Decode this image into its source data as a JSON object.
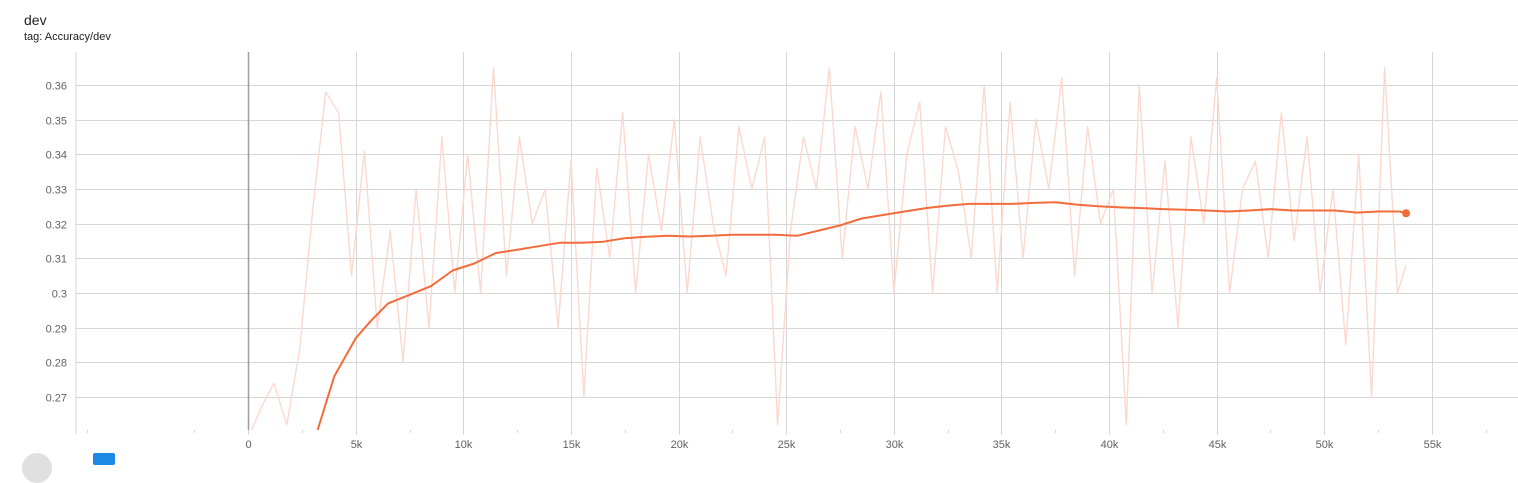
{
  "card": {
    "title": "dev",
    "tag": "tag: Accuracy/dev"
  },
  "colors": {
    "smoothed": "#f36b3b",
    "raw": "#fbd9ce",
    "grid": "#d6d6d6",
    "axis_line": "#9e9e9e",
    "tick_text": "#616161"
  },
  "chart_data": {
    "type": "line",
    "title": "dev",
    "subtitle": "tag: Accuracy/dev",
    "xlabel": "",
    "ylabel": "",
    "xlim": [
      -8000,
      59000
    ],
    "ylim": [
      0.2605,
      0.3695
    ],
    "x_ticks": [
      0,
      5000,
      10000,
      15000,
      20000,
      25000,
      30000,
      35000,
      40000,
      45000,
      50000,
      55000
    ],
    "x_tick_labels": [
      "0",
      "5k",
      "10k",
      "15k",
      "20k",
      "25k",
      "30k",
      "35k",
      "40k",
      "45k",
      "50k",
      "55k"
    ],
    "y_ticks": [
      0.27,
      0.28,
      0.29,
      0.3,
      0.31,
      0.32,
      0.33,
      0.34,
      0.35,
      0.36
    ],
    "y_tick_labels": [
      "0.27",
      "0.28",
      "0.29",
      "0.3",
      "0.31",
      "0.32",
      "0.33",
      "0.34",
      "0.35",
      "0.36"
    ],
    "grid": true,
    "series": [
      {
        "name": "Accuracy/dev (smoothed)",
        "x": [
          3200,
          4000,
          5000,
          5700,
          6500,
          7500,
          8500,
          9500,
          10500,
          11500,
          12500,
          13500,
          14500,
          15500,
          16500,
          17500,
          18500,
          19500,
          20500,
          21500,
          22500,
          23500,
          24500,
          25500,
          26500,
          27500,
          28500,
          29500,
          30500,
          31500,
          32500,
          33500,
          34500,
          35500,
          36500,
          37500,
          38500,
          39500,
          40500,
          41500,
          42500,
          43500,
          44500,
          45500,
          46500,
          47500,
          48500,
          49500,
          50500,
          51500,
          52500,
          53500,
          53800
        ],
        "values": [
          0.26,
          0.276,
          0.287,
          0.292,
          0.297,
          0.2995,
          0.302,
          0.3065,
          0.3085,
          0.3115,
          0.3125,
          0.3135,
          0.3145,
          0.3145,
          0.3148,
          0.3158,
          0.3162,
          0.3165,
          0.3163,
          0.3165,
          0.3168,
          0.3168,
          0.3168,
          0.3165,
          0.318,
          0.3195,
          0.3215,
          0.3225,
          0.3235,
          0.3245,
          0.3252,
          0.3257,
          0.3257,
          0.3257,
          0.326,
          0.3262,
          0.3255,
          0.325,
          0.3247,
          0.3245,
          0.3242,
          0.324,
          0.3238,
          0.3235,
          0.3238,
          0.3242,
          0.3238,
          0.3238,
          0.3238,
          0.3232,
          0.3235,
          0.3235,
          0.323
        ]
      },
      {
        "name": "Accuracy/dev (raw)",
        "x": [
          0,
          600,
          1200,
          1800,
          2400,
          3000,
          3600,
          4200,
          4800,
          5400,
          6000,
          6600,
          7200,
          7800,
          8400,
          9000,
          9600,
          10200,
          10800,
          11400,
          12000,
          12600,
          13200,
          13800,
          14400,
          15000,
          15600,
          16200,
          16800,
          17400,
          18000,
          18600,
          19200,
          19800,
          20400,
          21000,
          21600,
          22200,
          22800,
          23400,
          24000,
          24600,
          25200,
          25800,
          26400,
          27000,
          27600,
          28200,
          28800,
          29400,
          30000,
          30600,
          31200,
          31800,
          32400,
          33000,
          33600,
          34200,
          34800,
          35400,
          36000,
          36600,
          37200,
          37800,
          38400,
          39000,
          39600,
          40200,
          40800,
          41400,
          42000,
          42600,
          43200,
          43800,
          44400,
          45000,
          45600,
          46200,
          46800,
          47400,
          48000,
          48600,
          49200,
          49800,
          50400,
          51000,
          51600,
          52200,
          52800,
          53400,
          53800
        ],
        "values": [
          0.258,
          0.267,
          0.274,
          0.262,
          0.284,
          0.324,
          0.358,
          0.352,
          0.305,
          0.341,
          0.29,
          0.318,
          0.28,
          0.33,
          0.29,
          0.345,
          0.3,
          0.34,
          0.3,
          0.365,
          0.305,
          0.345,
          0.32,
          0.33,
          0.29,
          0.338,
          0.27,
          0.336,
          0.31,
          0.352,
          0.3,
          0.34,
          0.318,
          0.35,
          0.3,
          0.345,
          0.32,
          0.305,
          0.348,
          0.33,
          0.345,
          0.262,
          0.318,
          0.345,
          0.33,
          0.365,
          0.31,
          0.348,
          0.33,
          0.358,
          0.3,
          0.34,
          0.355,
          0.3,
          0.348,
          0.335,
          0.31,
          0.36,
          0.3,
          0.355,
          0.31,
          0.35,
          0.33,
          0.362,
          0.305,
          0.348,
          0.32,
          0.33,
          0.262,
          0.36,
          0.3,
          0.338,
          0.29,
          0.345,
          0.32,
          0.362,
          0.3,
          0.33,
          0.338,
          0.31,
          0.352,
          0.315,
          0.345,
          0.3,
          0.33,
          0.285,
          0.34,
          0.27,
          0.365,
          0.3,
          0.308
        ]
      }
    ]
  }
}
